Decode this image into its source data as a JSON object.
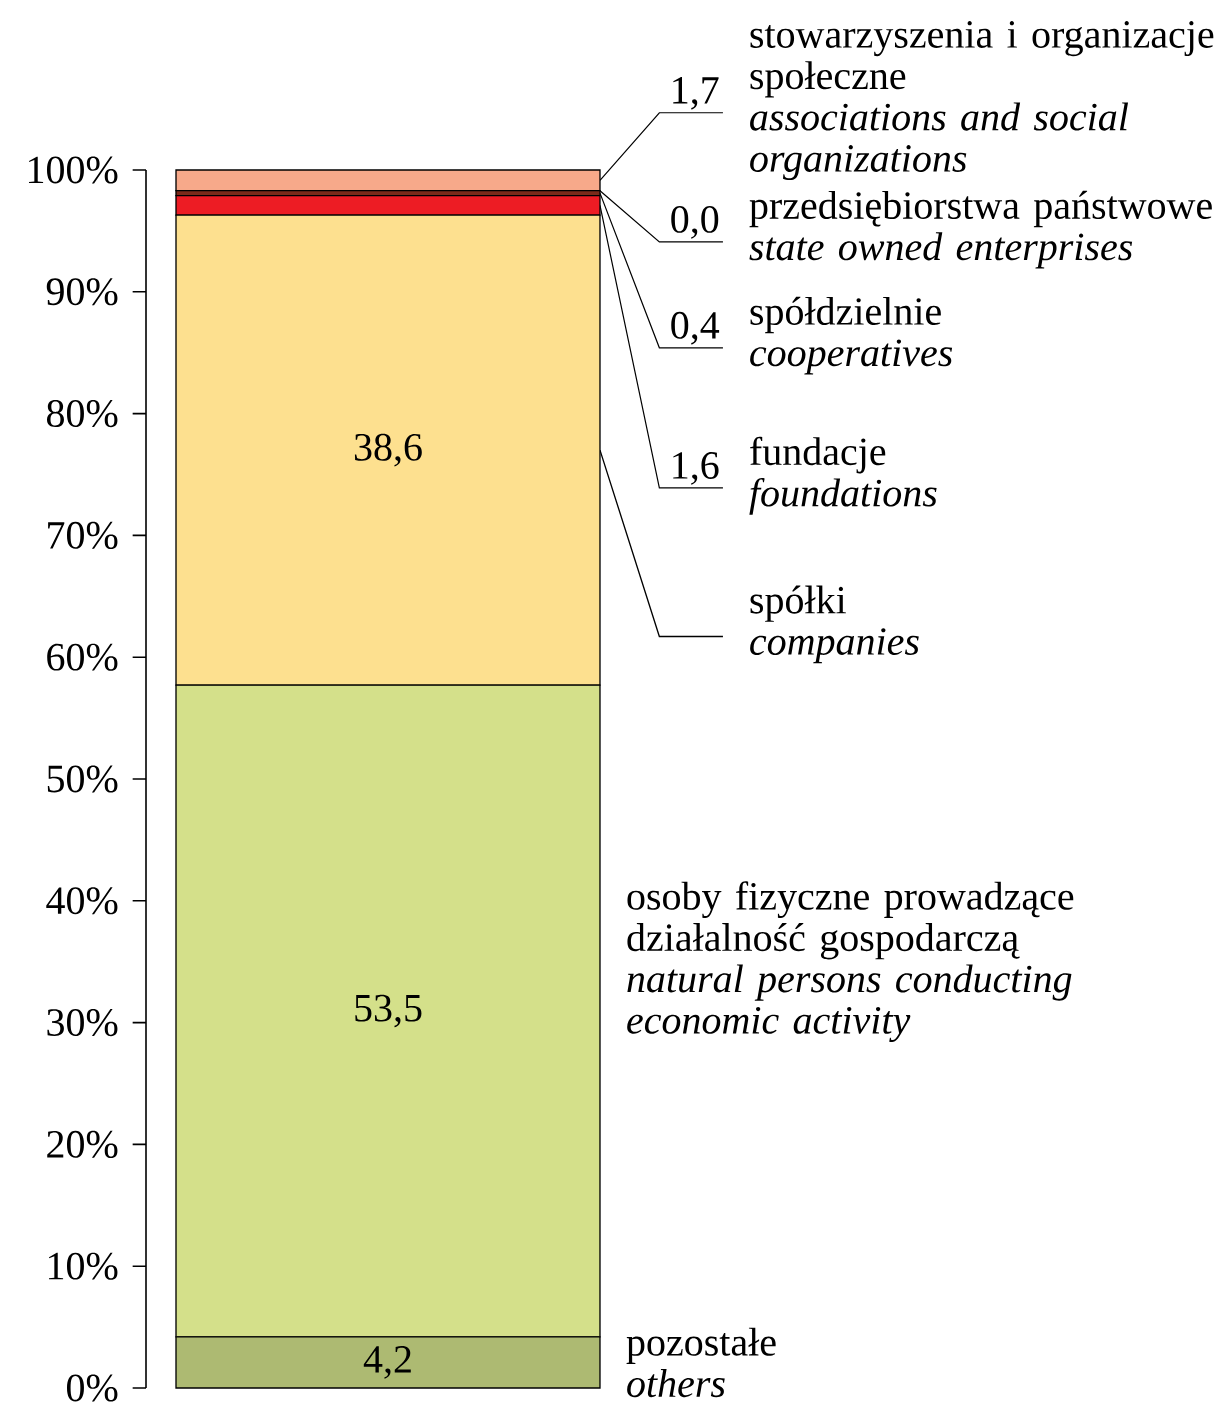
{
  "chart_data": {
    "type": "bar",
    "stacked": true,
    "grid": false,
    "categories": [
      null
    ],
    "ylim": [
      0,
      100
    ],
    "yticks": [
      {
        "value": 0,
        "label": "0%"
      },
      {
        "value": 10,
        "label": "10%"
      },
      {
        "value": 20,
        "label": "20%"
      },
      {
        "value": 30,
        "label": "30%"
      },
      {
        "value": 40,
        "label": "40%"
      },
      {
        "value": 50,
        "label": "50%"
      },
      {
        "value": 60,
        "label": "60%"
      },
      {
        "value": 70,
        "label": "70%"
      },
      {
        "value": 80,
        "label": "80%"
      },
      {
        "value": 90,
        "label": "90%"
      },
      {
        "value": 100,
        "label": "100%"
      }
    ],
    "annotations": [
      "0,0",
      "przedsiębiorstwa państwowe *state owned enterprises*"
    ],
    "series": [
      {
        "name": "pozostałe *others*",
        "color": "#adba72",
        "values": [
          4.2
        ],
        "value_labels": [
          "4,2"
        ]
      },
      {
        "name": "osoby fizyczne prowadzące działalność gospodarczą *natural persons conducting economic activity*",
        "color": "#d4e08a",
        "values": [
          53.5
        ],
        "value_labels": [
          "53,5"
        ]
      },
      {
        "name": "spółki *companies*",
        "color": "#fde08f",
        "values": [
          38.6
        ],
        "value_labels": [
          "38,6"
        ]
      },
      {
        "name": "fundacje *foundations*",
        "color": "#ed1c24",
        "values": [
          1.6
        ],
        "value_labels": [
          "1,6"
        ]
      },
      {
        "name": "spółdzielnie *cooperatives*",
        "color": "#7b2a1a",
        "values": [
          0.4
        ],
        "value_labels": [
          "0,4"
        ]
      },
      {
        "name": "stowarzyszenia i organizacje społeczne *associations and social organizations*",
        "color": "#f7a98a",
        "values": [
          1.7
        ],
        "value_labels": [
          "1,7"
        ]
      }
    ]
  }
}
